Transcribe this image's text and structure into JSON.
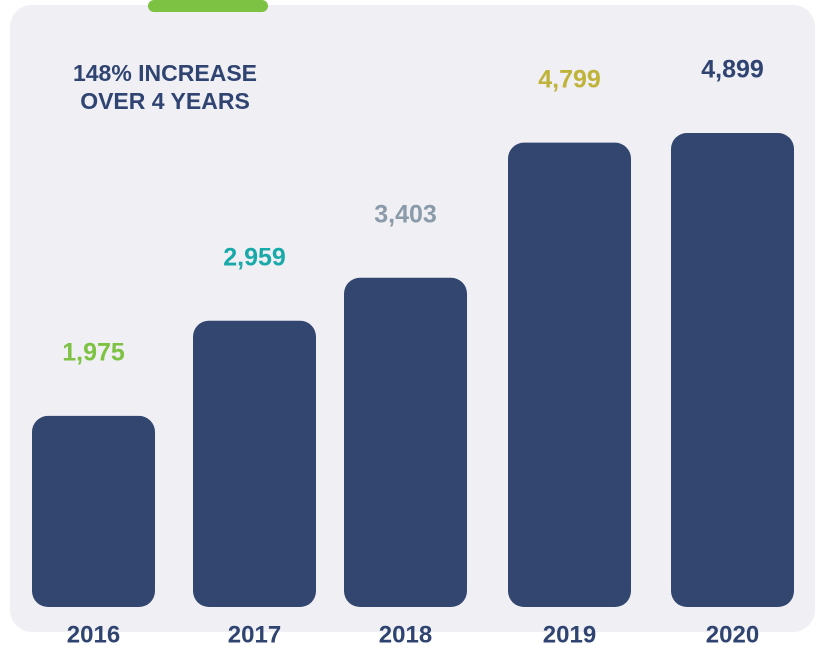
{
  "chart_data": {
    "type": "bar",
    "annotation": [
      "148% INCREASE",
      "OVER 4 YEARS"
    ],
    "categories": [
      "2016",
      "2017",
      "2018",
      "2019",
      "2020"
    ],
    "values": [
      1975,
      2959,
      3403,
      4799,
      4899
    ],
    "value_labels": [
      "1,975",
      "2,959",
      "3,403",
      "4,799",
      "4,899"
    ],
    "color": "#33466f",
    "label_colors": [
      "#7dc242",
      "#1aa9a9",
      "#8a9aa8",
      "#c0b33a",
      "#2f4470"
    ]
  }
}
